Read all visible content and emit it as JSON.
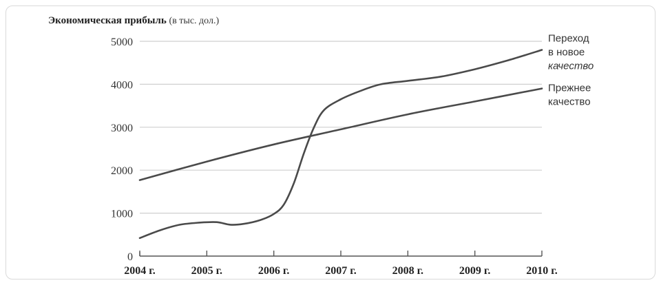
{
  "chart_data": {
    "type": "line",
    "title": "Экономическая прибыль",
    "title_unit": "(в тыс. дол.)",
    "x_tick_labels": [
      "2004 г.",
      "2005 г.",
      "2006 г.",
      "2007 г.",
      "2008 г.",
      "2009 г.",
      "2010 г."
    ],
    "x": [
      2004,
      2005,
      2006,
      2007,
      2008,
      2009,
      2010
    ],
    "xlim": [
      2004,
      2010
    ],
    "y_ticks": [
      0,
      1000,
      2000,
      3000,
      4000,
      5000
    ],
    "ylim": [
      0,
      5000
    ],
    "grid": true,
    "series": [
      {
        "name_lines": [
          "Переход",
          "в новое",
          "качество"
        ],
        "color": "#4a4a4a",
        "points": [
          [
            2004.0,
            420
          ],
          [
            2004.3,
            600
          ],
          [
            2004.6,
            730
          ],
          [
            2004.9,
            780
          ],
          [
            2005.15,
            790
          ],
          [
            2005.35,
            730
          ],
          [
            2005.55,
            750
          ],
          [
            2005.8,
            840
          ],
          [
            2006.0,
            980
          ],
          [
            2006.15,
            1200
          ],
          [
            2006.3,
            1700
          ],
          [
            2006.45,
            2400
          ],
          [
            2006.6,
            3000
          ],
          [
            2006.75,
            3400
          ],
          [
            2007.0,
            3650
          ],
          [
            2007.3,
            3850
          ],
          [
            2007.6,
            4000
          ],
          [
            2008.0,
            4080
          ],
          [
            2008.5,
            4180
          ],
          [
            2009.0,
            4350
          ],
          [
            2009.5,
            4560
          ],
          [
            2010.0,
            4800
          ]
        ]
      },
      {
        "name_lines": [
          "Прежнее",
          "качество"
        ],
        "color": "#4a4a4a",
        "points": [
          [
            2004.0,
            1770
          ],
          [
            2005.0,
            2200
          ],
          [
            2006.0,
            2600
          ],
          [
            2007.0,
            2950
          ],
          [
            2008.0,
            3300
          ],
          [
            2009.0,
            3600
          ],
          [
            2010.0,
            3900
          ]
        ]
      }
    ]
  }
}
